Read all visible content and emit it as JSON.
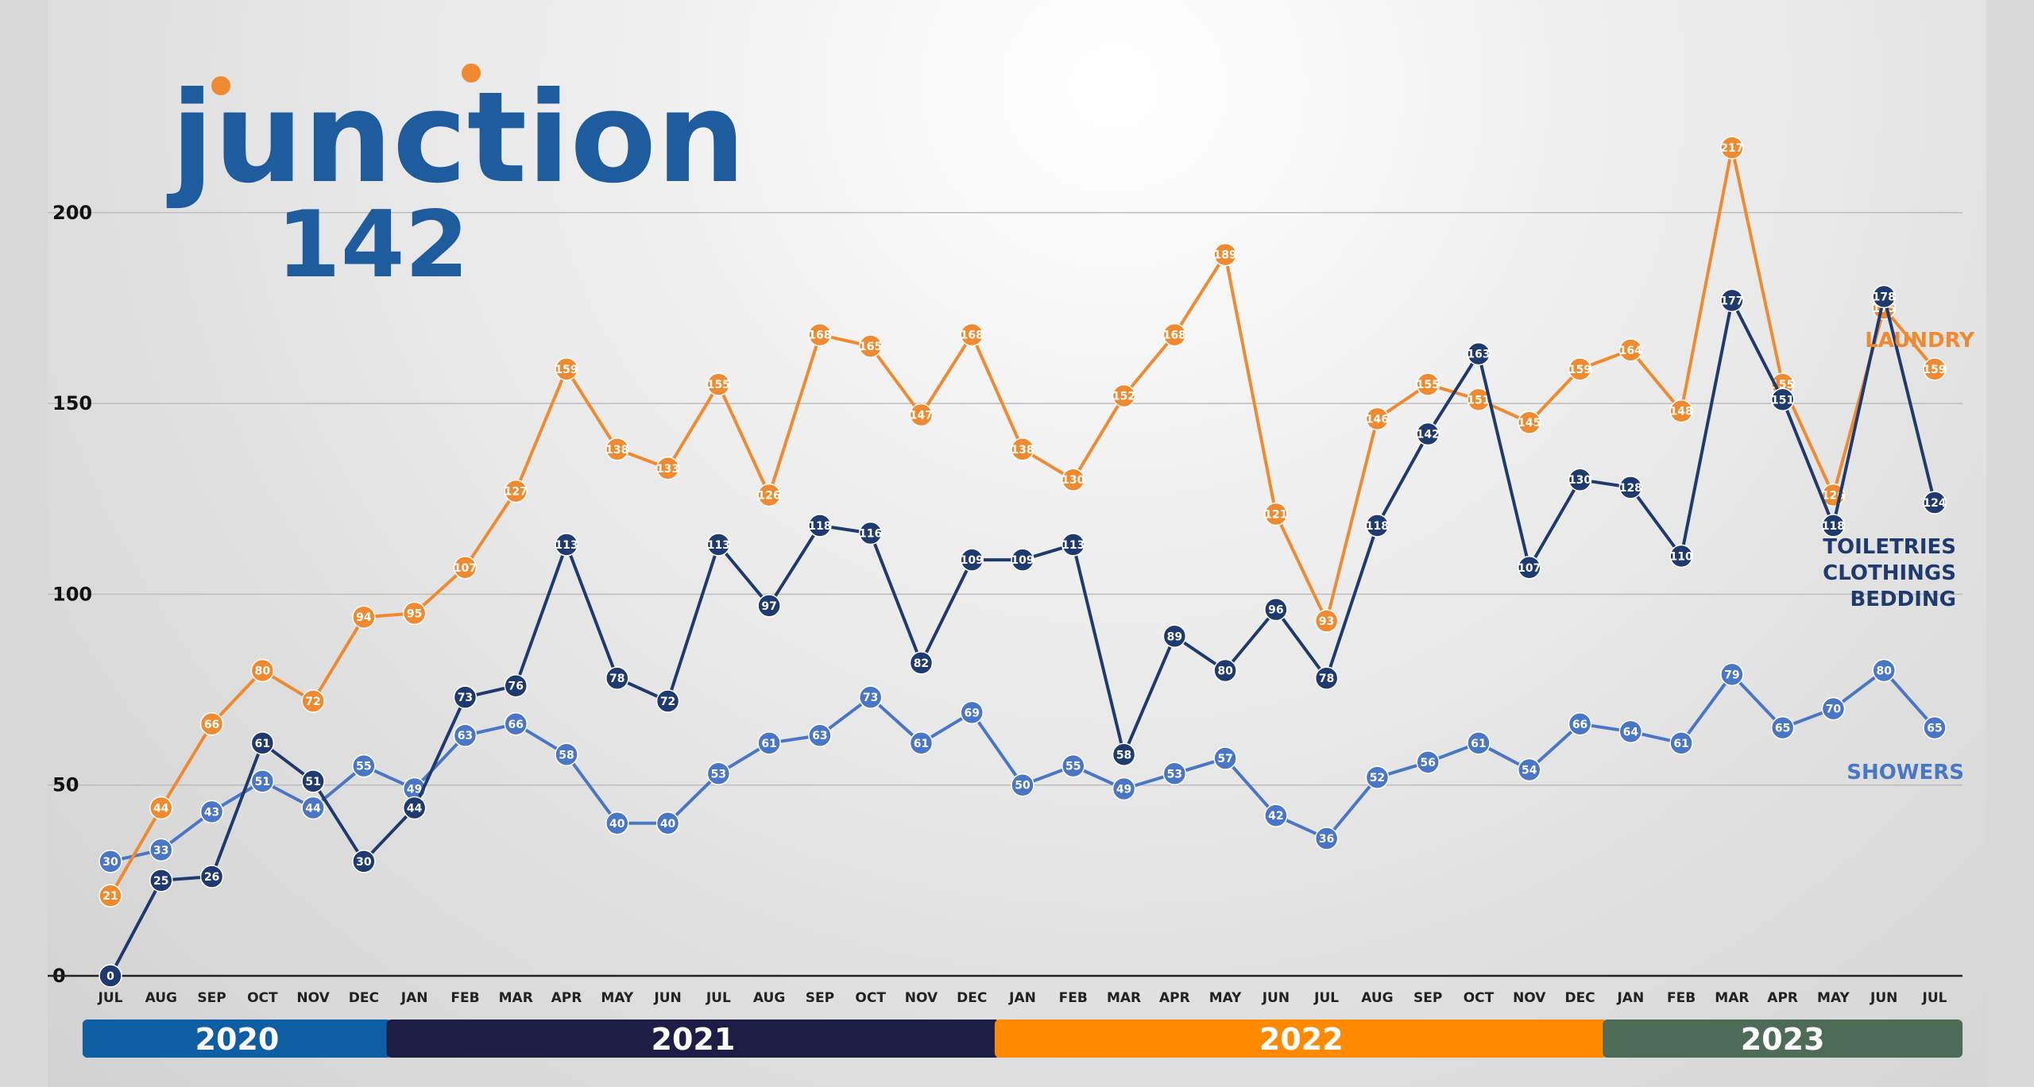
{
  "logo": {
    "line1": "junction",
    "line2": "142"
  },
  "colors": {
    "laundry": "#f08a30",
    "toiletries": "#1f3a6e",
    "showers": "#4a76c6",
    "year_2020": "#0d5ea3",
    "year_2021": "#1e1d45",
    "year_2022": "#ff8a00",
    "year_2023": "#4e6b58"
  },
  "chart_data": {
    "type": "line",
    "title": "",
    "xlabel": "",
    "ylabel": "",
    "ylim": [
      0,
      230
    ],
    "yticks": [
      0,
      50,
      100,
      150,
      200
    ],
    "grid": true,
    "categories": [
      "JUL",
      "AUG",
      "SEP",
      "OCT",
      "NOV",
      "DEC",
      "JAN",
      "FEB",
      "MAR",
      "APR",
      "MAY",
      "JUN",
      "JUL",
      "AUG",
      "SEP",
      "OCT",
      "NOV",
      "DEC",
      "JAN",
      "FEB",
      "MAR",
      "APR",
      "MAY",
      "JUN",
      "JUL",
      "AUG",
      "SEP",
      "OCT",
      "NOV",
      "DEC",
      "JAN",
      "FEB",
      "MAR",
      "APR",
      "MAY",
      "JUN",
      "JUL"
    ],
    "years": [
      {
        "label": "2020",
        "start": 0,
        "end": 5,
        "color_key": "year_2020"
      },
      {
        "label": "2021",
        "start": 6,
        "end": 17,
        "color_key": "year_2021"
      },
      {
        "label": "2022",
        "start": 18,
        "end": 29,
        "color_key": "year_2022"
      },
      {
        "label": "2023",
        "start": 30,
        "end": 36,
        "color_key": "year_2023"
      }
    ],
    "series": [
      {
        "name": "LAUNDRY",
        "color_key": "laundry",
        "values": [
          21,
          44,
          66,
          80,
          72,
          94,
          95,
          107,
          127,
          159,
          138,
          133,
          155,
          126,
          168,
          165,
          147,
          168,
          138,
          130,
          152,
          168,
          189,
          121,
          93,
          146,
          155,
          151,
          145,
          159,
          164,
          148,
          217,
          155,
          126,
          175,
          159
        ]
      },
      {
        "name": "TOILETRIES CLOTHINGS BEDDING",
        "name_lines": [
          "TOILETRIES",
          "CLOTHINGS",
          "BEDDING"
        ],
        "color_key": "toiletries",
        "values": [
          0,
          25,
          26,
          61,
          51,
          30,
          44,
          73,
          76,
          113,
          78,
          72,
          113,
          97,
          118,
          116,
          82,
          109,
          109,
          113,
          58,
          89,
          80,
          96,
          78,
          118,
          142,
          163,
          107,
          130,
          128,
          110,
          177,
          151,
          118,
          178,
          124
        ]
      },
      {
        "name": "SHOWERS",
        "color_key": "showers",
        "values": [
          30,
          33,
          43,
          51,
          44,
          55,
          49,
          63,
          66,
          58,
          40,
          40,
          53,
          61,
          63,
          73,
          61,
          69,
          50,
          55,
          49,
          53,
          57,
          42,
          36,
          52,
          56,
          61,
          54,
          66,
          64,
          61,
          79,
          65,
          70,
          80,
          65
        ]
      }
    ]
  }
}
